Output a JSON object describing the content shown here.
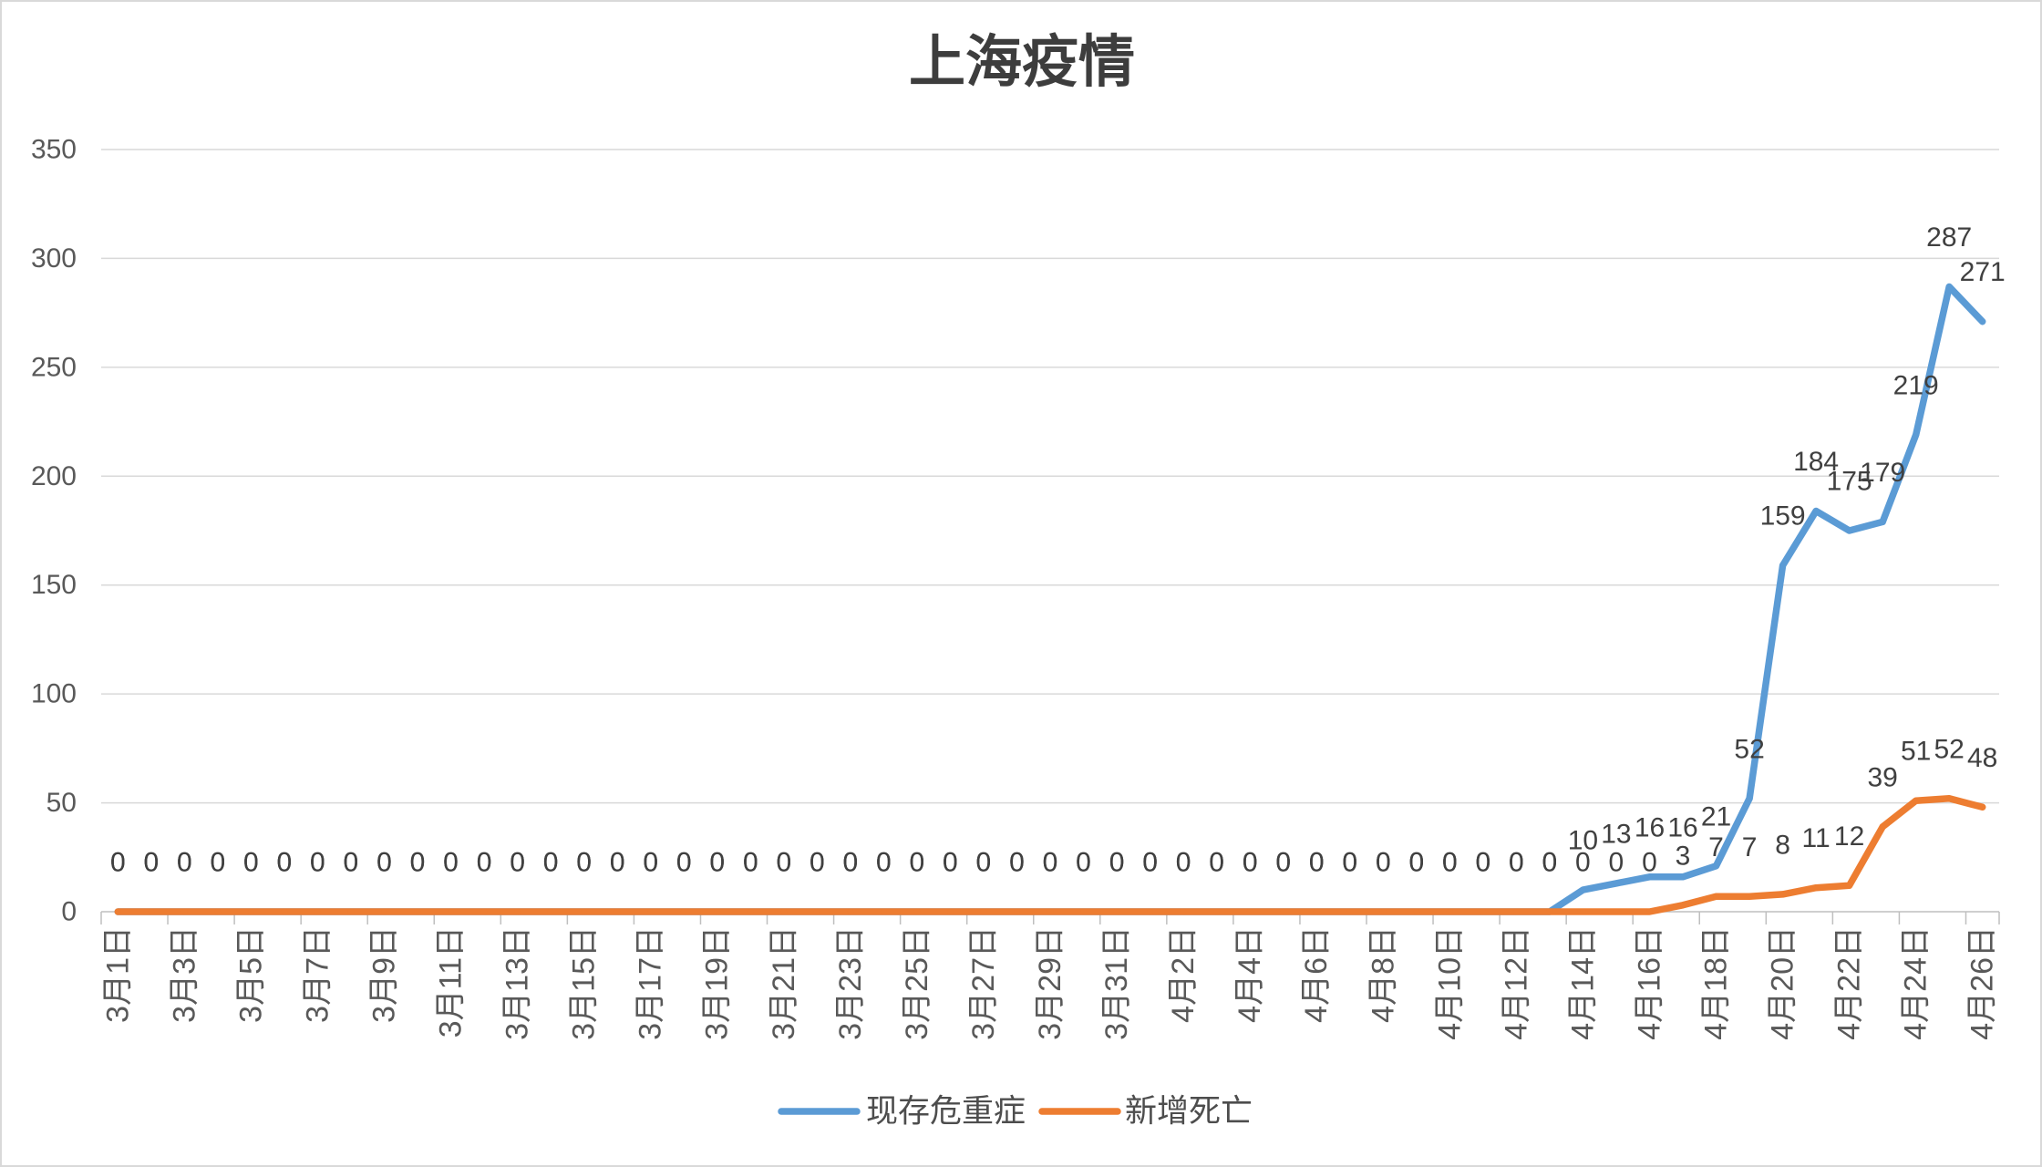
{
  "chart_data": {
    "type": "line",
    "title": "上海疫情",
    "xlabel": "",
    "ylabel": "",
    "categories": [
      "3月1日",
      "",
      "3月3日",
      "",
      "3月5日",
      "",
      "3月7日",
      "",
      "3月9日",
      "",
      "3月11日",
      "",
      "3月13日",
      "",
      "3月15日",
      "",
      "3月17日",
      "",
      "3月19日",
      "",
      "3月21日",
      "",
      "3月23日",
      "",
      "3月25日",
      "",
      "3月27日",
      "",
      "3月29日",
      "",
      "3月31日",
      "",
      "4月2日",
      "",
      "4月4日",
      "",
      "4月6日",
      "",
      "4月8日",
      "",
      "4月10日",
      "",
      "4月12日",
      "",
      "4月14日",
      "",
      "4月16日",
      "",
      "4月18日",
      "",
      "4月20日",
      "",
      "4月22日",
      "",
      "4月24日",
      "",
      "4月26日"
    ],
    "series": [
      {
        "name": "现存危重症",
        "color": "#5b9bd5",
        "values": [
          0,
          0,
          0,
          0,
          0,
          0,
          0,
          0,
          0,
          0,
          0,
          0,
          0,
          0,
          0,
          0,
          0,
          0,
          0,
          0,
          0,
          0,
          0,
          0,
          0,
          0,
          0,
          0,
          0,
          0,
          0,
          0,
          0,
          0,
          0,
          0,
          0,
          0,
          0,
          0,
          0,
          0,
          0,
          0,
          10,
          13,
          16,
          16,
          21,
          52,
          159,
          184,
          175,
          179,
          219,
          287,
          271
        ]
      },
      {
        "name": "新增死亡",
        "color": "#ed7d31",
        "values": [
          0,
          0,
          0,
          0,
          0,
          0,
          0,
          0,
          0,
          0,
          0,
          0,
          0,
          0,
          0,
          0,
          0,
          0,
          0,
          0,
          0,
          0,
          0,
          0,
          0,
          0,
          0,
          0,
          0,
          0,
          0,
          0,
          0,
          0,
          0,
          0,
          0,
          0,
          0,
          0,
          0,
          0,
          0,
          0,
          0,
          0,
          0,
          3,
          7,
          7,
          8,
          11,
          12,
          39,
          51,
          52,
          48
        ]
      }
    ],
    "ylim": [
      0,
      350
    ],
    "yticks": [
      0,
      50,
      100,
      150,
      200,
      250,
      300,
      350
    ],
    "grid": true,
    "data_labels": true,
    "legend": "bottom-center"
  }
}
